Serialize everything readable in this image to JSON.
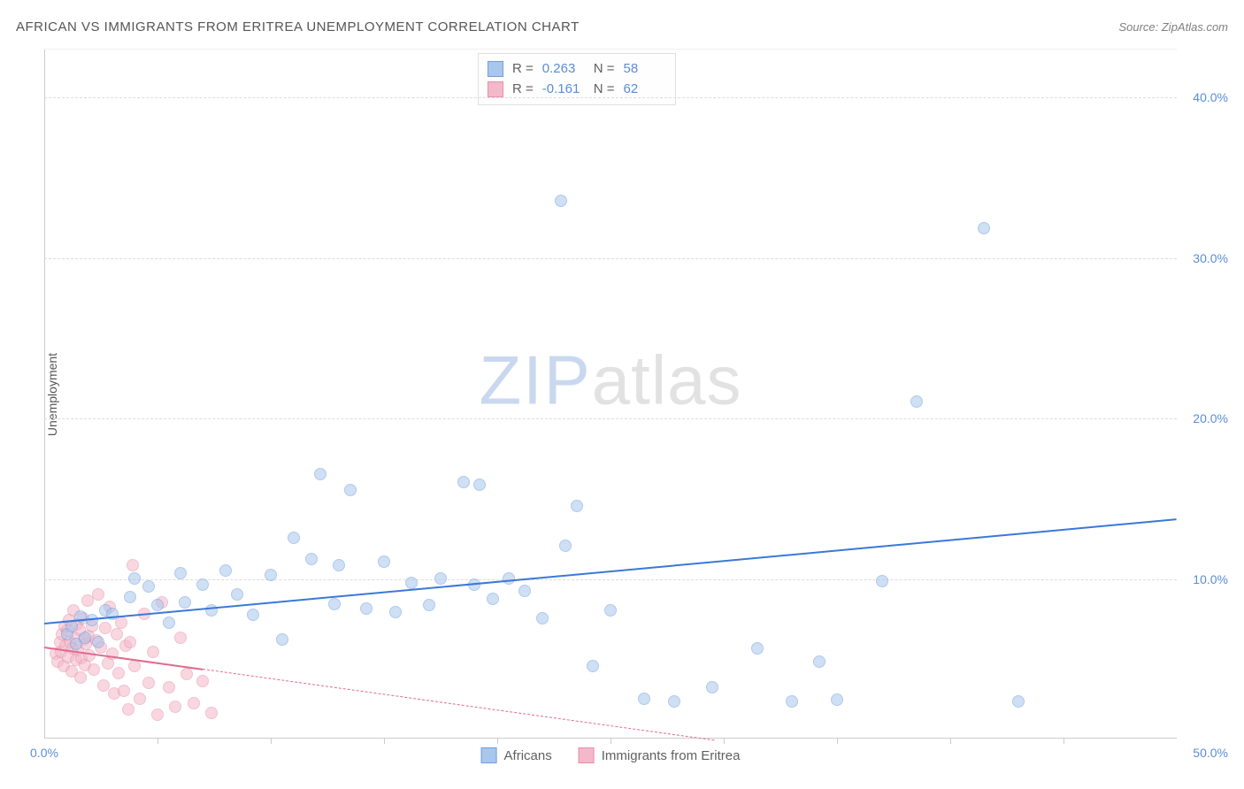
{
  "header": {
    "title": "AFRICAN VS IMMIGRANTS FROM ERITREA UNEMPLOYMENT CORRELATION CHART",
    "source": "Source: ZipAtlas.com"
  },
  "ylabel": "Unemployment",
  "watermark": {
    "part1": "ZIP",
    "part2": "atlas"
  },
  "chart": {
    "type": "scatter",
    "xlim": [
      0,
      50
    ],
    "ylim": [
      0,
      43
    ],
    "background_color": "#ffffff",
    "grid_color": "#dcdcdc",
    "axis_color": "#cccccc",
    "tick_label_color": "#5b8dd6",
    "yticks": [
      10,
      20,
      30,
      40
    ],
    "ytick_labels": [
      "10.0%",
      "20.0%",
      "30.0%",
      "40.0%"
    ],
    "xticks_minor": [
      5,
      10,
      15,
      20,
      25,
      30,
      35,
      40,
      45
    ],
    "xlabel_min": "0.0%",
    "xlabel_max": "50.0%",
    "marker_radius": 7,
    "marker_opacity": 0.55
  },
  "series": {
    "africans": {
      "label": "Africans",
      "fill": "#a9c6ec",
      "stroke": "#6f9fde",
      "line_color": "#3b78d8",
      "r_value": "0.263",
      "n_value": "58",
      "trend": {
        "x1": 0,
        "y1": 7.3,
        "x2": 50,
        "y2": 13.8,
        "solid_until_x": 50
      },
      "points": [
        [
          1.0,
          6.5
        ],
        [
          1.2,
          7.0
        ],
        [
          1.4,
          5.9
        ],
        [
          1.6,
          7.6
        ],
        [
          1.8,
          6.3
        ],
        [
          2.1,
          7.4
        ],
        [
          2.4,
          6.0
        ],
        [
          2.7,
          8.0
        ],
        [
          3.0,
          7.8
        ],
        [
          3.8,
          8.8
        ],
        [
          4.0,
          10.0
        ],
        [
          4.6,
          9.5
        ],
        [
          5.0,
          8.3
        ],
        [
          5.5,
          7.2
        ],
        [
          6.0,
          10.3
        ],
        [
          6.2,
          8.5
        ],
        [
          7.0,
          9.6
        ],
        [
          7.4,
          8.0
        ],
        [
          8.0,
          10.5
        ],
        [
          8.5,
          9.0
        ],
        [
          9.2,
          7.7
        ],
        [
          10.0,
          10.2
        ],
        [
          10.5,
          6.2
        ],
        [
          11.0,
          12.5
        ],
        [
          11.8,
          11.2
        ],
        [
          12.2,
          16.5
        ],
        [
          12.8,
          8.4
        ],
        [
          13.0,
          10.8
        ],
        [
          13.5,
          15.5
        ],
        [
          14.2,
          8.1
        ],
        [
          15.0,
          11.0
        ],
        [
          15.5,
          7.9
        ],
        [
          16.2,
          9.7
        ],
        [
          17.0,
          8.3
        ],
        [
          17.5,
          10.0
        ],
        [
          18.5,
          16.0
        ],
        [
          19.0,
          9.6
        ],
        [
          19.2,
          15.8
        ],
        [
          19.8,
          8.7
        ],
        [
          20.5,
          10.0
        ],
        [
          21.2,
          9.2
        ],
        [
          22.0,
          7.5
        ],
        [
          22.8,
          33.5
        ],
        [
          23.0,
          12.0
        ],
        [
          23.5,
          14.5
        ],
        [
          24.2,
          4.5
        ],
        [
          25.0,
          8.0
        ],
        [
          26.5,
          2.5
        ],
        [
          27.8,
          2.3
        ],
        [
          29.5,
          3.2
        ],
        [
          31.5,
          5.6
        ],
        [
          33.0,
          2.3
        ],
        [
          34.2,
          4.8
        ],
        [
          35.0,
          2.4
        ],
        [
          37.0,
          9.8
        ],
        [
          38.5,
          21.0
        ],
        [
          41.5,
          31.8
        ],
        [
          43.0,
          2.3
        ]
      ]
    },
    "eritrea": {
      "label": "Immigrants from Eritrea",
      "fill": "#f3b8c9",
      "stroke": "#e78fab",
      "line_color": "#e06b8f",
      "r_value": "-0.161",
      "n_value": "62",
      "trend": {
        "x1": 0,
        "y1": 5.8,
        "x2": 50,
        "y2": -4.0,
        "solid_until_x": 7.0
      },
      "points": [
        [
          0.5,
          5.3
        ],
        [
          0.6,
          4.8
        ],
        [
          0.7,
          6.0
        ],
        [
          0.75,
          5.4
        ],
        [
          0.8,
          6.5
        ],
        [
          0.85,
          4.5
        ],
        [
          0.9,
          7.0
        ],
        [
          0.95,
          5.8
        ],
        [
          1.0,
          6.7
        ],
        [
          1.05,
          5.1
        ],
        [
          1.1,
          7.4
        ],
        [
          1.15,
          6.0
        ],
        [
          1.2,
          4.2
        ],
        [
          1.25,
          5.6
        ],
        [
          1.3,
          8.0
        ],
        [
          1.35,
          6.3
        ],
        [
          1.4,
          4.9
        ],
        [
          1.45,
          7.1
        ],
        [
          1.5,
          5.5
        ],
        [
          1.55,
          6.8
        ],
        [
          1.6,
          3.8
        ],
        [
          1.65,
          5.0
        ],
        [
          1.7,
          7.5
        ],
        [
          1.75,
          6.2
        ],
        [
          1.8,
          4.6
        ],
        [
          1.85,
          5.9
        ],
        [
          1.9,
          8.6
        ],
        [
          1.95,
          6.4
        ],
        [
          2.0,
          5.2
        ],
        [
          2.1,
          7.0
        ],
        [
          2.2,
          4.3
        ],
        [
          2.3,
          6.1
        ],
        [
          2.4,
          9.0
        ],
        [
          2.5,
          5.7
        ],
        [
          2.6,
          3.3
        ],
        [
          2.7,
          6.9
        ],
        [
          2.8,
          4.7
        ],
        [
          2.9,
          8.2
        ],
        [
          3.0,
          5.3
        ],
        [
          3.1,
          2.8
        ],
        [
          3.2,
          6.5
        ],
        [
          3.3,
          4.1
        ],
        [
          3.4,
          7.2
        ],
        [
          3.5,
          3.0
        ],
        [
          3.6,
          5.8
        ],
        [
          3.7,
          1.8
        ],
        [
          3.8,
          6.0
        ],
        [
          3.9,
          10.8
        ],
        [
          4.0,
          4.5
        ],
        [
          4.2,
          2.5
        ],
        [
          4.4,
          7.8
        ],
        [
          4.6,
          3.5
        ],
        [
          4.8,
          5.4
        ],
        [
          5.0,
          1.5
        ],
        [
          5.2,
          8.5
        ],
        [
          5.5,
          3.2
        ],
        [
          5.8,
          2.0
        ],
        [
          6.0,
          6.3
        ],
        [
          6.3,
          4.0
        ],
        [
          6.6,
          2.2
        ],
        [
          7.0,
          3.6
        ],
        [
          7.4,
          1.6
        ]
      ]
    }
  },
  "stat_box": {
    "r_label": "R =",
    "n_label": "N ="
  }
}
